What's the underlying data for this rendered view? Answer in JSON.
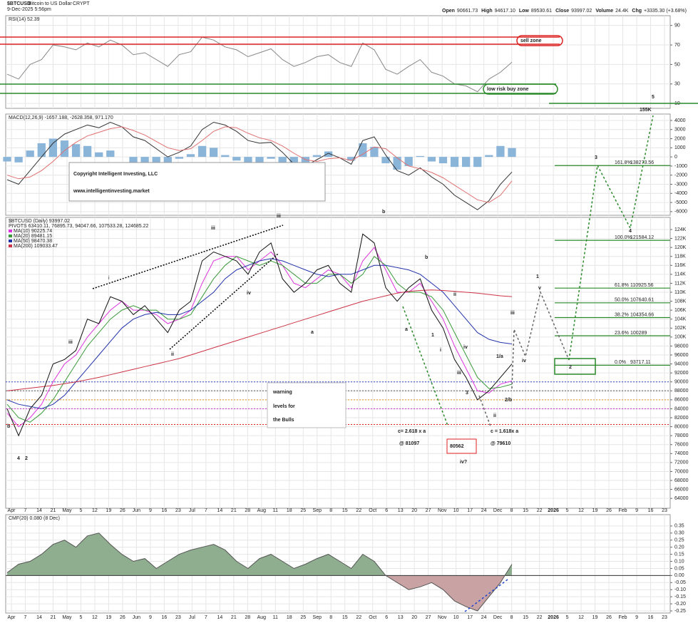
{
  "header": {
    "symbol": "$BTCUSD",
    "name": "Bitcoin to US Dollar",
    "exchange": "CRYPT",
    "datetime": "9-Dec-2025 5:56pm",
    "quote": [
      {
        "label": "Open",
        "value": "90661.73"
      },
      {
        "label": "High",
        "value": "94617.10"
      },
      {
        "label": "Low",
        "value": "89530.61"
      },
      {
        "label": "Close",
        "value": "93997.02"
      },
      {
        "label": "Volume",
        "value": "24.4K"
      },
      {
        "label": "Chg",
        "value": "+3335.30 (+3.68%)"
      }
    ]
  },
  "date_axis": [
    "Apr",
    "7",
    "14",
    "21",
    "May",
    "5",
    "12",
    "19",
    "26",
    "Jun",
    "9",
    "16",
    "23",
    "Jul",
    "7",
    "14",
    "21",
    "28",
    "Aug",
    "11",
    "18",
    "25",
    "Sep",
    "8",
    "15",
    "22",
    "Oct",
    "6",
    "13",
    "20",
    "27",
    "Nov",
    "10",
    "17",
    "24",
    "Dec",
    "8",
    "15",
    "22",
    "2026",
    "5",
    "12",
    "19",
    "26",
    "Feb",
    "9",
    "16",
    "23"
  ],
  "chart_data": [
    {
      "type": "line",
      "title": "RSI(14) 52.39",
      "ylim": [
        5,
        100
      ],
      "yticks": [
        90,
        70,
        50,
        30,
        10
      ],
      "grid": true,
      "series": [
        {
          "color": "#888888",
          "style": "line",
          "values": [
            40,
            35,
            50,
            55,
            70,
            68,
            65,
            72,
            68,
            75,
            70,
            60,
            62,
            55,
            48,
            60,
            63,
            78,
            75,
            68,
            65,
            58,
            62,
            66,
            55,
            48,
            52,
            58,
            60,
            52,
            48,
            72,
            65,
            45,
            40,
            48,
            55,
            42,
            38,
            30,
            28,
            22,
            35,
            42,
            52.39
          ]
        }
      ]
    },
    {
      "type": "line",
      "title": "MACD(12,26,9) -1657.188, -2628.358, 971.170",
      "ylim": [
        -6400,
        4700
      ],
      "yticks": [
        4000,
        3000,
        2000,
        1000,
        0,
        -1000,
        -2000,
        -3000,
        -4000,
        -5000,
        -6000
      ],
      "grid": true,
      "series": [
        {
          "color": "#8ab4d8",
          "style": "bar",
          "values": [
            -500,
            -600,
            700,
            1500,
            2000,
            1800,
            1400,
            1200,
            500,
            700,
            0,
            -700,
            -600,
            -800,
            -1000,
            -200,
            300,
            1200,
            1000,
            200,
            -400,
            -800,
            -600,
            -200,
            -700,
            -1200,
            -700,
            200,
            600,
            0,
            -400,
            1500,
            1100,
            -700,
            -1400,
            -1000,
            100,
            -500,
            -700,
            -1100,
            -1100,
            -1100,
            200,
            1200,
            971.17
          ]
        },
        {
          "color": "#333333",
          "style": "line",
          "values": [
            -2500,
            -3000,
            -1500,
            0,
            1500,
            2500,
            3000,
            3500,
            3200,
            3800,
            3300,
            2200,
            1800,
            900,
            0,
            500,
            1200,
            3000,
            3800,
            3500,
            2800,
            1800,
            1500,
            1600,
            500,
            -800,
            -1000,
            -300,
            400,
            -100,
            -800,
            1800,
            2200,
            200,
            -1500,
            -2000,
            -1200,
            -2200,
            -3000,
            -4200,
            -5000,
            -5800,
            -4800,
            -3000,
            -1657.188
          ]
        },
        {
          "color": "#e07070",
          "style": "line",
          "values": [
            -2000,
            -2400,
            -2200,
            -1500,
            -500,
            700,
            1600,
            2300,
            2700,
            3100,
            3300,
            2900,
            2400,
            1700,
            1000,
            700,
            900,
            1800,
            2800,
            3300,
            3200,
            2600,
            2100,
            1800,
            1200,
            400,
            -300,
            -500,
            -200,
            -100,
            -400,
            300,
            1100,
            900,
            -100,
            -1000,
            -1300,
            -1700,
            -2300,
            -3100,
            -3900,
            -4700,
            -5000,
            -4200,
            -2628.358
          ]
        }
      ]
    },
    {
      "type": "line",
      "title": "$BTCUSD (Daily) 93997.02",
      "subtitle": "PIVOTS 63410.11, 76895.73, 94047.66, 107533.28, 124685.22",
      "ylim": [
        61800,
        126700
      ],
      "grid": true,
      "yticks": [
        {
          "value": 124000,
          "label": "124K"
        },
        {
          "value": 122000,
          "label": "122K"
        },
        {
          "value": 120000,
          "label": "120K"
        },
        {
          "value": 118000,
          "label": "118K"
        },
        {
          "value": 116000,
          "label": "116K"
        },
        {
          "value": 114000,
          "label": "114K"
        },
        {
          "value": 112000,
          "label": "112K"
        },
        {
          "value": 110000,
          "label": "110K"
        },
        {
          "value": 108000,
          "label": "108K"
        },
        {
          "value": 106000,
          "label": "106K"
        },
        {
          "value": 104000,
          "label": "104K"
        },
        {
          "value": 102000,
          "label": "102K"
        },
        {
          "value": 100000,
          "label": "100K"
        },
        {
          "value": 98000,
          "label": "98000"
        },
        {
          "value": 96000,
          "label": "96000"
        },
        {
          "value": 94000,
          "label": "94000"
        },
        {
          "value": 92000,
          "label": "92000"
        },
        {
          "value": 90000,
          "label": "90000"
        },
        {
          "value": 88000,
          "label": "88000"
        },
        {
          "value": 86000,
          "label": "86000"
        },
        {
          "value": 84000,
          "label": "84000"
        },
        {
          "value": 82000,
          "label": "82000"
        },
        {
          "value": 80000,
          "label": "80000"
        },
        {
          "value": 78000,
          "label": "78000"
        },
        {
          "value": 76000,
          "label": "76000"
        },
        {
          "value": 74000,
          "label": "74000"
        },
        {
          "value": 72000,
          "label": "72000"
        },
        {
          "value": 70000,
          "label": "70000"
        },
        {
          "value": 68000,
          "label": "68000"
        },
        {
          "value": 66000,
          "label": "66000"
        },
        {
          "value": 64000,
          "label": "64000"
        }
      ],
      "levels": [
        {
          "value": 90000,
          "color": "#3344cc"
        },
        {
          "value": 88000,
          "color": "#555555"
        },
        {
          "value": 86000,
          "color": "#e09a20"
        },
        {
          "value": 84000,
          "color": "#cc33cc"
        },
        {
          "value": 80500,
          "color": "#dd2222"
        }
      ],
      "fib": [
        {
          "label": "161.8%",
          "value": 138273.56
        },
        {
          "label": "100.0%",
          "value": 121584.12
        },
        {
          "label": "61.8%",
          "value": 110925.56
        },
        {
          "label": "50.0%",
          "value": 107640.61
        },
        {
          "label": "38.2%",
          "value": 104354.66
        },
        {
          "label": "23.6%",
          "value": 100289.0
        },
        {
          "label": "0.0%",
          "value": 93717.11
        }
      ],
      "fib_color": "#2a8a2a",
      "series": [
        {
          "name": "MA(10) 90225.74",
          "color": "#dd33dd",
          "style": "line",
          "values": [
            83000,
            80000,
            82000,
            85000,
            90000,
            94000,
            96000,
            100000,
            103000,
            106000,
            108000,
            106000,
            106000,
            105000,
            103000,
            104000,
            106000,
            112000,
            117000,
            118000,
            118000,
            115000,
            117000,
            119000,
            116000,
            112000,
            111000,
            113000,
            115000,
            114000,
            111000,
            117000,
            120000,
            115000,
            110000,
            110000,
            112000,
            108000,
            104000,
            98000,
            93000,
            88000,
            87500,
            89500,
            90225.74
          ]
        },
        {
          "name": "MA(20) 89481.15",
          "color": "#3a9a3a",
          "style": "line",
          "values": [
            85000,
            82000,
            81000,
            83000,
            86000,
            90000,
            94000,
            98000,
            101000,
            104000,
            106000,
            107000,
            106000,
            106000,
            104000,
            104000,
            105000,
            109000,
            113000,
            116000,
            118000,
            117000,
            116000,
            117000,
            116000,
            114000,
            112000,
            112000,
            114000,
            114000,
            112000,
            114000,
            118000,
            116000,
            112000,
            110000,
            110000,
            109000,
            106000,
            101000,
            96000,
            91000,
            88500,
            88800,
            89481.15
          ]
        },
        {
          "name": "MA(50) 98470.38",
          "color": "#2233aa",
          "style": "line",
          "values": [
            86000,
            85000,
            84500,
            84000,
            85000,
            87000,
            90000,
            93000,
            96000,
            99000,
            102000,
            104000,
            105000,
            105500,
            105000,
            105000,
            106000,
            108000,
            110000,
            113000,
            115000,
            116000,
            117000,
            117500,
            117000,
            116000,
            115000,
            114000,
            113500,
            114000,
            114000,
            115000,
            116000,
            116000,
            115500,
            115000,
            114000,
            112000,
            110000,
            107000,
            104000,
            101000,
            99500,
            98800,
            98470.38
          ]
        },
        {
          "name": "MA(200) 109033.47",
          "color": "#cc3344",
          "style": "line",
          "values": [
            88000,
            88300,
            88600,
            88900,
            89200,
            89600,
            90000,
            90500,
            91000,
            91600,
            92200,
            92800,
            93400,
            94000,
            94600,
            95200,
            96000,
            96800,
            97600,
            98400,
            99200,
            100000,
            100800,
            101600,
            102400,
            103200,
            104000,
            104800,
            105600,
            106400,
            107200,
            108000,
            108600,
            109200,
            109800,
            110200,
            110400,
            110500,
            110400,
            110200,
            110000,
            109800,
            109500,
            109200,
            109033.47
          ]
        },
        {
          "color": "#111111",
          "style": "line",
          "values": [
            84000,
            78000,
            84000,
            87000,
            94000,
            95000,
            97000,
            104000,
            103000,
            109000,
            108000,
            105000,
            107000,
            104000,
            101000,
            106000,
            108000,
            117000,
            119000,
            118000,
            117000,
            114000,
            119000,
            121000,
            113000,
            110000,
            112000,
            115000,
            116000,
            112000,
            110000,
            123000,
            121000,
            111000,
            108000,
            111000,
            113000,
            106000,
            102000,
            95000,
            91000,
            86000,
            88000,
            91000,
            93997.02
          ]
        }
      ]
    },
    {
      "type": "line",
      "title": "CMF(20) 0.080 (8 Dec)",
      "ylim": [
        -0.265,
        0.43
      ],
      "grid": true,
      "yticks": [
        {
          "value": 0.35,
          "label": "0.35"
        },
        {
          "value": 0.3,
          "label": "0.30"
        },
        {
          "value": 0.25,
          "label": "0.25"
        },
        {
          "value": 0.2,
          "label": "0.20"
        },
        {
          "value": 0.15,
          "label": "0.15"
        },
        {
          "value": 0.1,
          "label": "0.10"
        },
        {
          "value": 0.05,
          "label": "0.05"
        },
        {
          "value": 0,
          "label": "0.00"
        },
        {
          "value": -0.05,
          "label": "-0.05"
        },
        {
          "value": -0.1,
          "label": "-0.10"
        },
        {
          "value": -0.15,
          "label": "-0.15"
        },
        {
          "value": -0.2,
          "label": "-0.20"
        },
        {
          "value": -0.25,
          "label": "-0.25"
        }
      ],
      "series": [
        {
          "color": "#8fae8f",
          "negative_color": "#c9a3a3",
          "style": "area",
          "values": [
            0.02,
            0.08,
            0.1,
            0.15,
            0.22,
            0.25,
            0.2,
            0.28,
            0.3,
            0.22,
            0.15,
            0.1,
            0.12,
            0.05,
            0.1,
            0.15,
            0.18,
            0.2,
            0.22,
            0.18,
            0.1,
            0.05,
            0.12,
            0.15,
            0.1,
            0.05,
            0.08,
            0.12,
            0.15,
            0.1,
            0.05,
            0.15,
            0.1,
            0,
            -0.05,
            -0.1,
            -0.08,
            -0.05,
            -0.1,
            -0.18,
            -0.22,
            -0.25,
            -0.15,
            -0.05,
            0.08
          ]
        }
      ]
    }
  ],
  "annotations": [
    {
      "text": "sell zone",
      "color": "#dd2222"
    },
    {
      "text": "low risk buy zone",
      "color": "#2a8a2a"
    },
    {
      "text": "Copyright Intelligent Investing, LLC",
      "color": "#000000"
    },
    {
      "text": "www.intelligentinvesting.market",
      "color": "#000000"
    },
    {
      "text": "warning",
      "color": "#dd2222"
    },
    {
      "text": "levels for",
      "color": "#dd2222"
    },
    {
      "text": "the Bulls",
      "color": "#dd2222"
    },
    {
      "text": "c= 2.618 x a",
      "color": "#2a8a2a"
    },
    {
      "text": "@ 81097",
      "color": "#2a8a2a"
    },
    {
      "text": "80562",
      "color": "#dd2222"
    },
    {
      "text": "iv?",
      "color": "#dd2222"
    },
    {
      "text": "c = 1.618x a",
      "color": "#666666"
    },
    {
      "text": "@ 79610",
      "color": "#666666"
    },
    {
      "text": "5",
      "color": "#2a8a2a"
    },
    {
      "text": "155K",
      "color": "#2a8a2a"
    },
    {
      "text": "3",
      "color": "#2a8a2a"
    },
    {
      "text": "4",
      "color": "#2a8a2a"
    },
    {
      "text": "2",
      "color": "#2a8a2a"
    },
    {
      "text": "1",
      "color": "#2a8a2a"
    },
    {
      "text": "v",
      "color": "#666666"
    },
    {
      "text": "iii",
      "color": "#666666"
    },
    {
      "text": "iv",
      "color": "#666666"
    },
    {
      "text": "iii",
      "color": "#dd2222"
    },
    {
      "text": "b",
      "color": "#2a8a2a"
    },
    {
      "text": "iii",
      "color": "#444444"
    },
    {
      "text": "i",
      "color": "#444444"
    },
    {
      "text": "ii",
      "color": "#444444"
    },
    {
      "text": "iv",
      "color": "#444444"
    },
    {
      "text": "a",
      "color": "#2a8a2a"
    },
    {
      "text": "a",
      "color": "#444444"
    },
    {
      "text": "b",
      "color": "#444444"
    },
    {
      "text": "1/a",
      "color": "#e09a20"
    },
    {
      "text": "2/b",
      "color": "#e09a20"
    },
    {
      "text": "ii",
      "color": "#444444"
    },
    {
      "text": "4",
      "color": "#2a8a2a"
    },
    {
      "text": "2",
      "color": "#e09a20"
    },
    {
      "text": "3",
      "color": "#e09a20"
    },
    {
      "text": "1",
      "color": "#e09a20"
    },
    {
      "text": "i",
      "color": "#2233aa"
    },
    {
      "text": "ii",
      "color": "#2233aa"
    },
    {
      "text": "iii",
      "color": "#2233aa"
    },
    {
      "text": "iv",
      "color": "#2233aa"
    },
    {
      "text": "iii",
      "color": "#2233aa"
    },
    {
      "text": "b",
      "color": "#2233aa"
    }
  ]
}
